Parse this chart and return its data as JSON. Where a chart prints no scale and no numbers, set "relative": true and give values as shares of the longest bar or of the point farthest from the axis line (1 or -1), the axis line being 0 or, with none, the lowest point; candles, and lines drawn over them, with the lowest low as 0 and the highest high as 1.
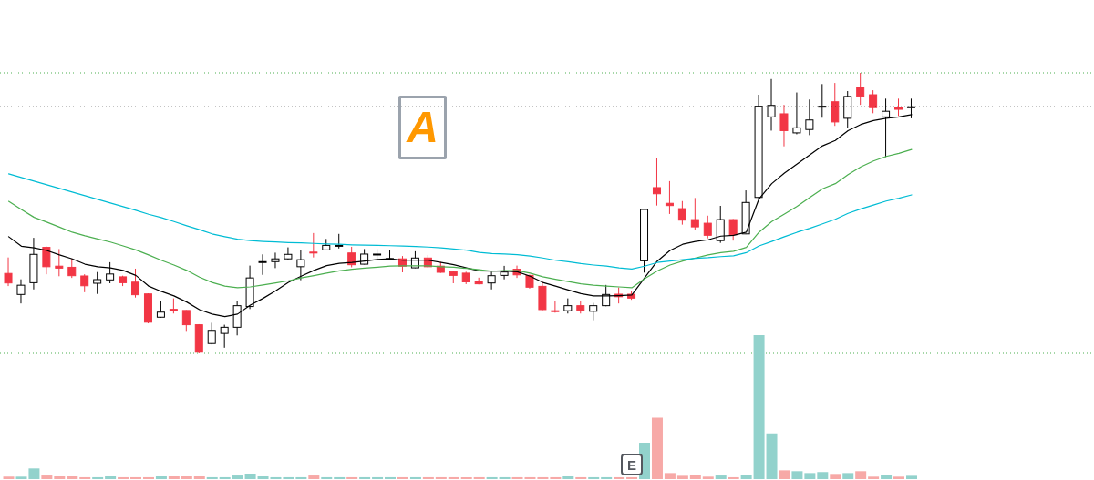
{
  "chart_data": [
    {
      "type": "candlestick",
      "relative": true,
      "categories": [
        null,
        null,
        null,
        null,
        null,
        null,
        null,
        null,
        null,
        null,
        null,
        null,
        null,
        null,
        null,
        null,
        null,
        null,
        null,
        null,
        null,
        null,
        null,
        null,
        null,
        null,
        null,
        null,
        null,
        null,
        null,
        null,
        null,
        null,
        null,
        null,
        null,
        null,
        null,
        null,
        null,
        null,
        null,
        null,
        null,
        null,
        null,
        null,
        null,
        null,
        null,
        null,
        null,
        null,
        null,
        null,
        null,
        null,
        null,
        null,
        null,
        null,
        null,
        null,
        null,
        null,
        null,
        null,
        null,
        null,
        null,
        null
      ],
      "ohlc": [
        [
          0.285,
          0.342,
          0.24,
          0.251
        ],
        [
          0.21,
          0.264,
          0.178,
          0.243
        ],
        [
          0.252,
          0.412,
          0.228,
          0.353
        ],
        [
          0.378,
          0.381,
          0.282,
          0.309
        ],
        [
          0.311,
          0.372,
          0.275,
          0.304
        ],
        [
          0.307,
          0.338,
          0.269,
          0.277
        ],
        [
          0.276,
          0.282,
          0.218,
          0.241
        ],
        [
          0.25,
          0.29,
          0.212,
          0.263
        ],
        [
          0.262,
          0.325,
          0.25,
          0.283
        ],
        [
          0.273,
          0.277,
          0.24,
          0.252
        ],
        [
          0.254,
          0.302,
          0.199,
          0.209
        ],
        [
          0.212,
          0.214,
          0.107,
          0.111
        ],
        [
          0.129,
          0.188,
          0.127,
          0.147
        ],
        [
          0.157,
          0.196,
          0.142,
          0.152
        ],
        [
          0.153,
          0.154,
          0.08,
          0.102
        ],
        [
          0.102,
          0.104,
          0,
          0.004
        ],
        [
          0.035,
          0.109,
          0.032,
          0.082
        ],
        [
          0.071,
          0.102,
          0.02,
          0.093
        ],
        [
          0.093,
          0.188,
          0.064,
          0.17
        ],
        [
          0.167,
          0.313,
          0.158,
          0.269
        ],
        [
          0.325,
          0.353,
          0.28,
          0.327
        ],
        [
          0.327,
          0.359,
          0.304,
          0.337
        ],
        [
          0.337,
          0.378,
          0.334,
          0.353
        ],
        [
          0.309,
          0.369,
          0.261,
          0.334
        ],
        [
          0.361,
          0.429,
          0.342,
          0.358
        ],
        [
          0.369,
          0.408,
          0.367,
          0.385
        ],
        [
          0.384,
          0.426,
          0.374,
          0.385
        ],
        [
          0.358,
          0.38,
          0.307,
          0.316
        ],
        [
          0.318,
          0.372,
          0.317,
          0.354
        ],
        [
          0.353,
          0.372,
          0.334,
          0.354
        ],
        [
          0.337,
          0.367,
          0.335,
          0.338
        ],
        [
          0.337,
          0.347,
          0.289,
          0.311
        ],
        [
          0.305,
          0.364,
          0.304,
          0.34
        ],
        [
          0.34,
          0.351,
          0.305,
          0.309
        ],
        [
          0.311,
          0.326,
          0.287,
          0.289
        ],
        [
          0.291,
          0.294,
          0.25,
          0.278
        ],
        [
          0.286,
          0.291,
          0.247,
          0.255
        ],
        [
          0.257,
          0.27,
          0.246,
          0.248
        ],
        [
          0.251,
          0.291,
          0.228,
          0.277
        ],
        [
          0.278,
          0.312,
          0.264,
          0.29
        ],
        [
          0.3,
          0.313,
          0.269,
          0.28
        ],
        [
          0.278,
          0.28,
          0.231,
          0.236
        ],
        [
          0.239,
          0.256,
          0.153,
          0.156
        ],
        [
          0.152,
          0.188,
          0.145,
          0.149
        ],
        [
          0.152,
          0.196,
          0.142,
          0.17
        ],
        [
          0.17,
          0.188,
          0.142,
          0.154
        ],
        [
          0.15,
          0.18,
          0.118,
          0.17
        ],
        [
          0.17,
          0.244,
          0.168,
          0.21
        ],
        [
          0.211,
          0.235,
          0.178,
          0.202
        ],
        [
          0.211,
          0.224,
          0.191,
          0.197
        ],
        [
          0.33,
          0.515,
          0.288,
          0.513
        ],
        [
          0.591,
          0.697,
          0.527,
          0.569
        ],
        [
          0.535,
          0.614,
          0.497,
          0.527
        ],
        [
          0.516,
          0.543,
          0.459,
          0.475
        ],
        [
          0.477,
          0.554,
          0.439,
          0.451
        ],
        [
          0.464,
          0.491,
          0.41,
          0.421
        ],
        [
          0.402,
          0.526,
          0.394,
          0.477
        ],
        [
          0.477,
          0.479,
          0.402,
          0.423
        ],
        [
          0.426,
          0.581,
          0.425,
          0.538
        ],
        [
          0.556,
          0.922,
          0.549,
          0.881
        ],
        [
          0.843,
          0.978,
          0.794,
          0.884
        ],
        [
          0.854,
          0.886,
          0.738,
          0.794
        ],
        [
          0.786,
          0.93,
          0.781,
          0.804
        ],
        [
          0.798,
          0.905,
          0.778,
          0.832
        ],
        [
          0.879,
          0.96,
          0.84,
          0.881
        ],
        [
          0.897,
          0.964,
          0.811,
          0.825
        ],
        [
          0.838,
          0.935,
          0.803,
          0.916
        ],
        [
          0.948,
          1,
          0.886,
          0.916
        ],
        [
          0.922,
          0.938,
          0.856,
          0.876
        ],
        [
          0.843,
          0.908,
          0.7,
          0.863
        ],
        [
          0.878,
          0.908,
          0.846,
          0.87
        ],
        [
          0.878,
          0.908,
          0.838,
          0.879
        ]
      ],
      "colors": [
        "#f23645",
        "#000000",
        "#000000",
        "#f23645",
        "#f23645",
        "#f23645",
        "#f23645",
        "#000000",
        "#000000",
        "#f23645",
        "#f23645",
        "#f23645",
        "#000000",
        "#f23645",
        "#f23645",
        "#f23645",
        "#000000",
        "#000000",
        "#000000",
        "#000000",
        "#000000",
        "#000000",
        "#000000",
        "#000000",
        "#f23645",
        "#000000",
        "#000000",
        "#f23645",
        "#000000",
        "#000000",
        "#000000",
        "#f23645",
        "#000000",
        "#f23645",
        "#f23645",
        "#f23645",
        "#f23645",
        "#f23645",
        "#000000",
        "#000000",
        "#f23645",
        "#f23645",
        "#f23645",
        "#f23645",
        "#000000",
        "#f23645",
        "#000000",
        "#000000",
        "#f23645",
        "#f23645",
        "#000000",
        "#f23645",
        "#f23645",
        "#f23645",
        "#f23645",
        "#f23645",
        "#000000",
        "#f23645",
        "#000000",
        "#000000",
        "#000000",
        "#f23645",
        "#000000",
        "#000000",
        "#000000",
        "#f23645",
        "#000000",
        "#f23645",
        "#f23645",
        "#000000",
        "#f23645",
        "#000000"
      ],
      "series": [
        {
          "type": "line",
          "color": "#000000",
          "values": [
            0.416,
            0.382,
            0.376,
            0.367,
            0.351,
            0.337,
            0.318,
            0.309,
            0.305,
            0.296,
            0.278,
            0.24,
            0.221,
            0.205,
            0.183,
            0.156,
            0.14,
            0.131,
            0.14,
            0.172,
            0.196,
            0.223,
            0.253,
            0.275,
            0.296,
            0.313,
            0.321,
            0.324,
            0.329,
            0.335,
            0.337,
            0.332,
            0.332,
            0.332,
            0.324,
            0.316,
            0.305,
            0.294,
            0.293,
            0.293,
            0.291,
            0.275,
            0.253,
            0.24,
            0.226,
            0.213,
            0.205,
            0.205,
            0.206,
            0.208,
            0.269,
            0.329,
            0.367,
            0.389,
            0.399,
            0.405,
            0.418,
            0.421,
            0.432,
            0.551,
            0.605,
            0.643,
            0.675,
            0.708,
            0.74,
            0.759,
            0.794,
            0.816,
            0.83,
            0.838,
            0.843,
            0.851
          ]
        },
        {
          "type": "line",
          "color": "#4caf50",
          "values": [
            0.542,
            0.513,
            0.485,
            0.468,
            0.45,
            0.432,
            0.419,
            0.408,
            0.397,
            0.383,
            0.369,
            0.351,
            0.332,
            0.315,
            0.296,
            0.272,
            0.253,
            0.24,
            0.234,
            0.237,
            0.244,
            0.251,
            0.259,
            0.269,
            0.277,
            0.286,
            0.294,
            0.3,
            0.304,
            0.307,
            0.311,
            0.312,
            0.312,
            0.312,
            0.309,
            0.307,
            0.303,
            0.298,
            0.293,
            0.295,
            0.295,
            0.286,
            0.273,
            0.264,
            0.256,
            0.248,
            0.243,
            0.24,
            0.237,
            0.234,
            0.266,
            0.294,
            0.315,
            0.329,
            0.34,
            0.351,
            0.359,
            0.364,
            0.378,
            0.432,
            0.47,
            0.497,
            0.524,
            0.556,
            0.587,
            0.605,
            0.637,
            0.665,
            0.686,
            0.702,
            0.713,
            0.727
          ]
        },
        {
          "type": "line",
          "color": "#00bcd4",
          "values": [
            0.64,
            0.627,
            0.614,
            0.601,
            0.588,
            0.575,
            0.562,
            0.549,
            0.536,
            0.523,
            0.51,
            0.496,
            0.484,
            0.47,
            0.455,
            0.441,
            0.426,
            0.416,
            0.407,
            0.402,
            0.399,
            0.397,
            0.395,
            0.394,
            0.392,
            0.39,
            0.389,
            0.387,
            0.386,
            0.385,
            0.384,
            0.383,
            0.381,
            0.379,
            0.376,
            0.372,
            0.368,
            0.36,
            0.356,
            0.354,
            0.352,
            0.347,
            0.34,
            0.332,
            0.327,
            0.32,
            0.315,
            0.311,
            0.305,
            0.301,
            0.311,
            0.324,
            0.329,
            0.334,
            0.339,
            0.341,
            0.345,
            0.348,
            0.359,
            0.383,
            0.399,
            0.416,
            0.432,
            0.446,
            0.462,
            0.478,
            0.499,
            0.515,
            0.529,
            0.543,
            0.553,
            0.565
          ]
        }
      ],
      "ref_lines": [
        {
          "axis": "y",
          "value": 1,
          "color": "#4caf50",
          "line_style": "dotted"
        },
        {
          "axis": "y",
          "value": 0,
          "color": "#4caf50",
          "line_style": "dotted"
        },
        {
          "axis": "y",
          "value": 0.879,
          "color": "#000000",
          "line_style": "dotted"
        }
      ],
      "annotations": [
        "A"
      ]
    },
    {
      "type": "bar",
      "relative": true,
      "categories": [
        null,
        null,
        null,
        null,
        null,
        null,
        null,
        null,
        null,
        null,
        null,
        null,
        null,
        null,
        null,
        null,
        null,
        null,
        null,
        null,
        null,
        null,
        null,
        null,
        null,
        null,
        null,
        null,
        null,
        null,
        null,
        null,
        null,
        null,
        null,
        null,
        null,
        null,
        null,
        null,
        null,
        null,
        null,
        null,
        null,
        null,
        null,
        null,
        null,
        null,
        null,
        null,
        null,
        null,
        null,
        null,
        null,
        null,
        null,
        null,
        null,
        null,
        null,
        null,
        null,
        null,
        null,
        null,
        null,
        null,
        null,
        null
      ],
      "values": [
        0.017,
        0.017,
        0.074,
        0.025,
        0.019,
        0.019,
        0.013,
        0.013,
        0.019,
        0.013,
        0.013,
        0.013,
        0.019,
        0.019,
        0.019,
        0.019,
        0.013,
        0.013,
        0.025,
        0.038,
        0.019,
        0.013,
        0.013,
        0.013,
        0.025,
        0.013,
        0.013,
        0.013,
        0.013,
        0.013,
        0.013,
        0.013,
        0.013,
        0.013,
        0.013,
        0.013,
        0.013,
        0.013,
        0.013,
        0.013,
        0.013,
        0.013,
        0.013,
        0.013,
        0.019,
        0.013,
        0.013,
        0.013,
        0.013,
        0.013,
        0.253,
        0.428,
        0.042,
        0.023,
        0.03,
        0.017,
        0.025,
        0.013,
        0.03,
        1,
        0.318,
        0.061,
        0.055,
        0.042,
        0.049,
        0.036,
        0.042,
        0.055,
        0.017,
        0.03,
        0.017,
        0.023
      ],
      "colors": [
        "#f7a9a7",
        "#92d2cc",
        "#92d2cc",
        "#f7a9a7",
        "#f7a9a7",
        "#f7a9a7",
        "#f7a9a7",
        "#92d2cc",
        "#92d2cc",
        "#f7a9a7",
        "#f7a9a7",
        "#f7a9a7",
        "#92d2cc",
        "#f7a9a7",
        "#f7a9a7",
        "#f7a9a7",
        "#92d2cc",
        "#92d2cc",
        "#92d2cc",
        "#92d2cc",
        "#92d2cc",
        "#92d2cc",
        "#92d2cc",
        "#92d2cc",
        "#f7a9a7",
        "#92d2cc",
        "#92d2cc",
        "#f7a9a7",
        "#92d2cc",
        "#92d2cc",
        "#92d2cc",
        "#f7a9a7",
        "#92d2cc",
        "#f7a9a7",
        "#f7a9a7",
        "#f7a9a7",
        "#f7a9a7",
        "#f7a9a7",
        "#92d2cc",
        "#92d2cc",
        "#f7a9a7",
        "#f7a9a7",
        "#f7a9a7",
        "#f7a9a7",
        "#92d2cc",
        "#f7a9a7",
        "#92d2cc",
        "#92d2cc",
        "#f7a9a7",
        "#f7a9a7",
        "#92d2cc",
        "#f7a9a7",
        "#f7a9a7",
        "#f7a9a7",
        "#f7a9a7",
        "#f7a9a7",
        "#92d2cc",
        "#f7a9a7",
        "#92d2cc",
        "#92d2cc",
        "#92d2cc",
        "#f7a9a7",
        "#92d2cc",
        "#92d2cc",
        "#92d2cc",
        "#f7a9a7",
        "#92d2cc",
        "#f7a9a7",
        "#f7a9a7",
        "#92d2cc",
        "#f7a9a7",
        "#92d2cc"
      ],
      "annotations": [
        "E"
      ]
    }
  ]
}
